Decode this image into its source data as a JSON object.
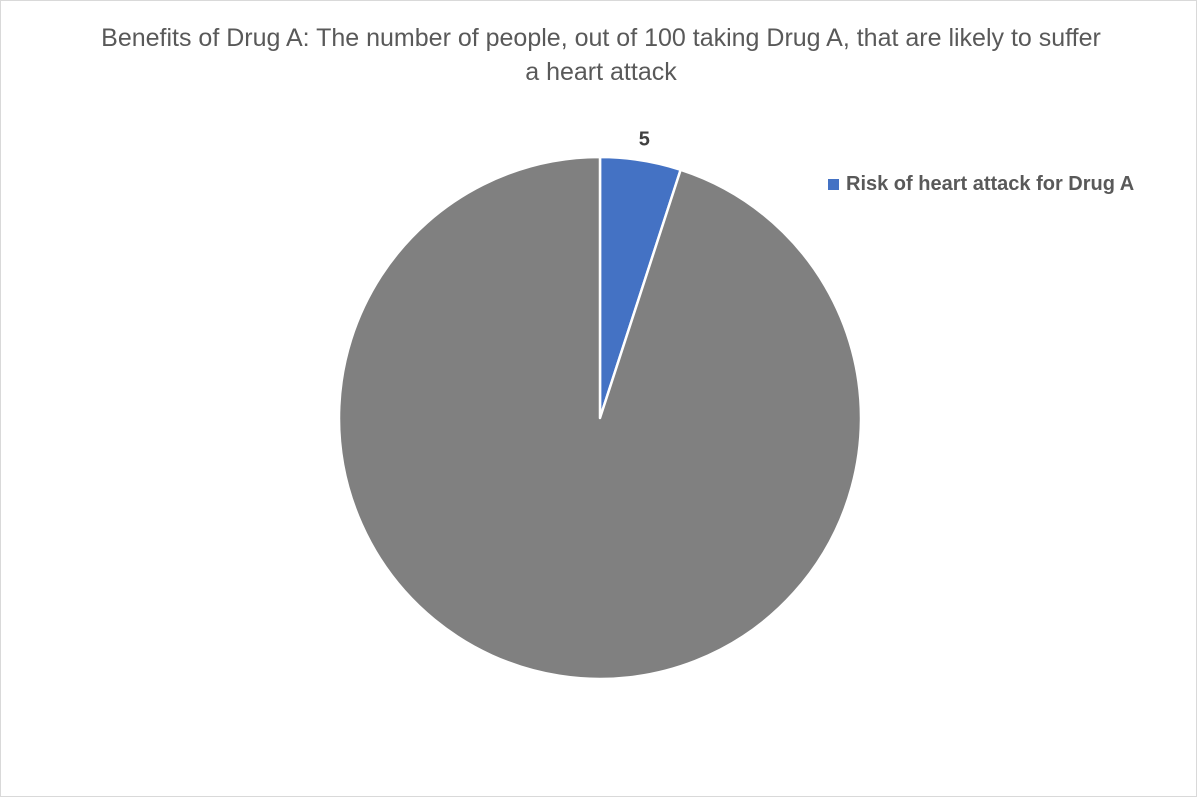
{
  "chart_data": {
    "type": "pie",
    "title": "Benefits of Drug A: The number of people, out of 100 taking Drug A, that are likely to suffer a heart attack",
    "slices": [
      {
        "name": "Risk of heart attack for Drug A",
        "value": 5,
        "color": "#4472c4",
        "data_label": "5"
      },
      {
        "value": 95,
        "color": "#808080"
      }
    ],
    "legend": {
      "placement": "right",
      "entries": [
        "Risk of heart attack for Drug A"
      ]
    }
  }
}
